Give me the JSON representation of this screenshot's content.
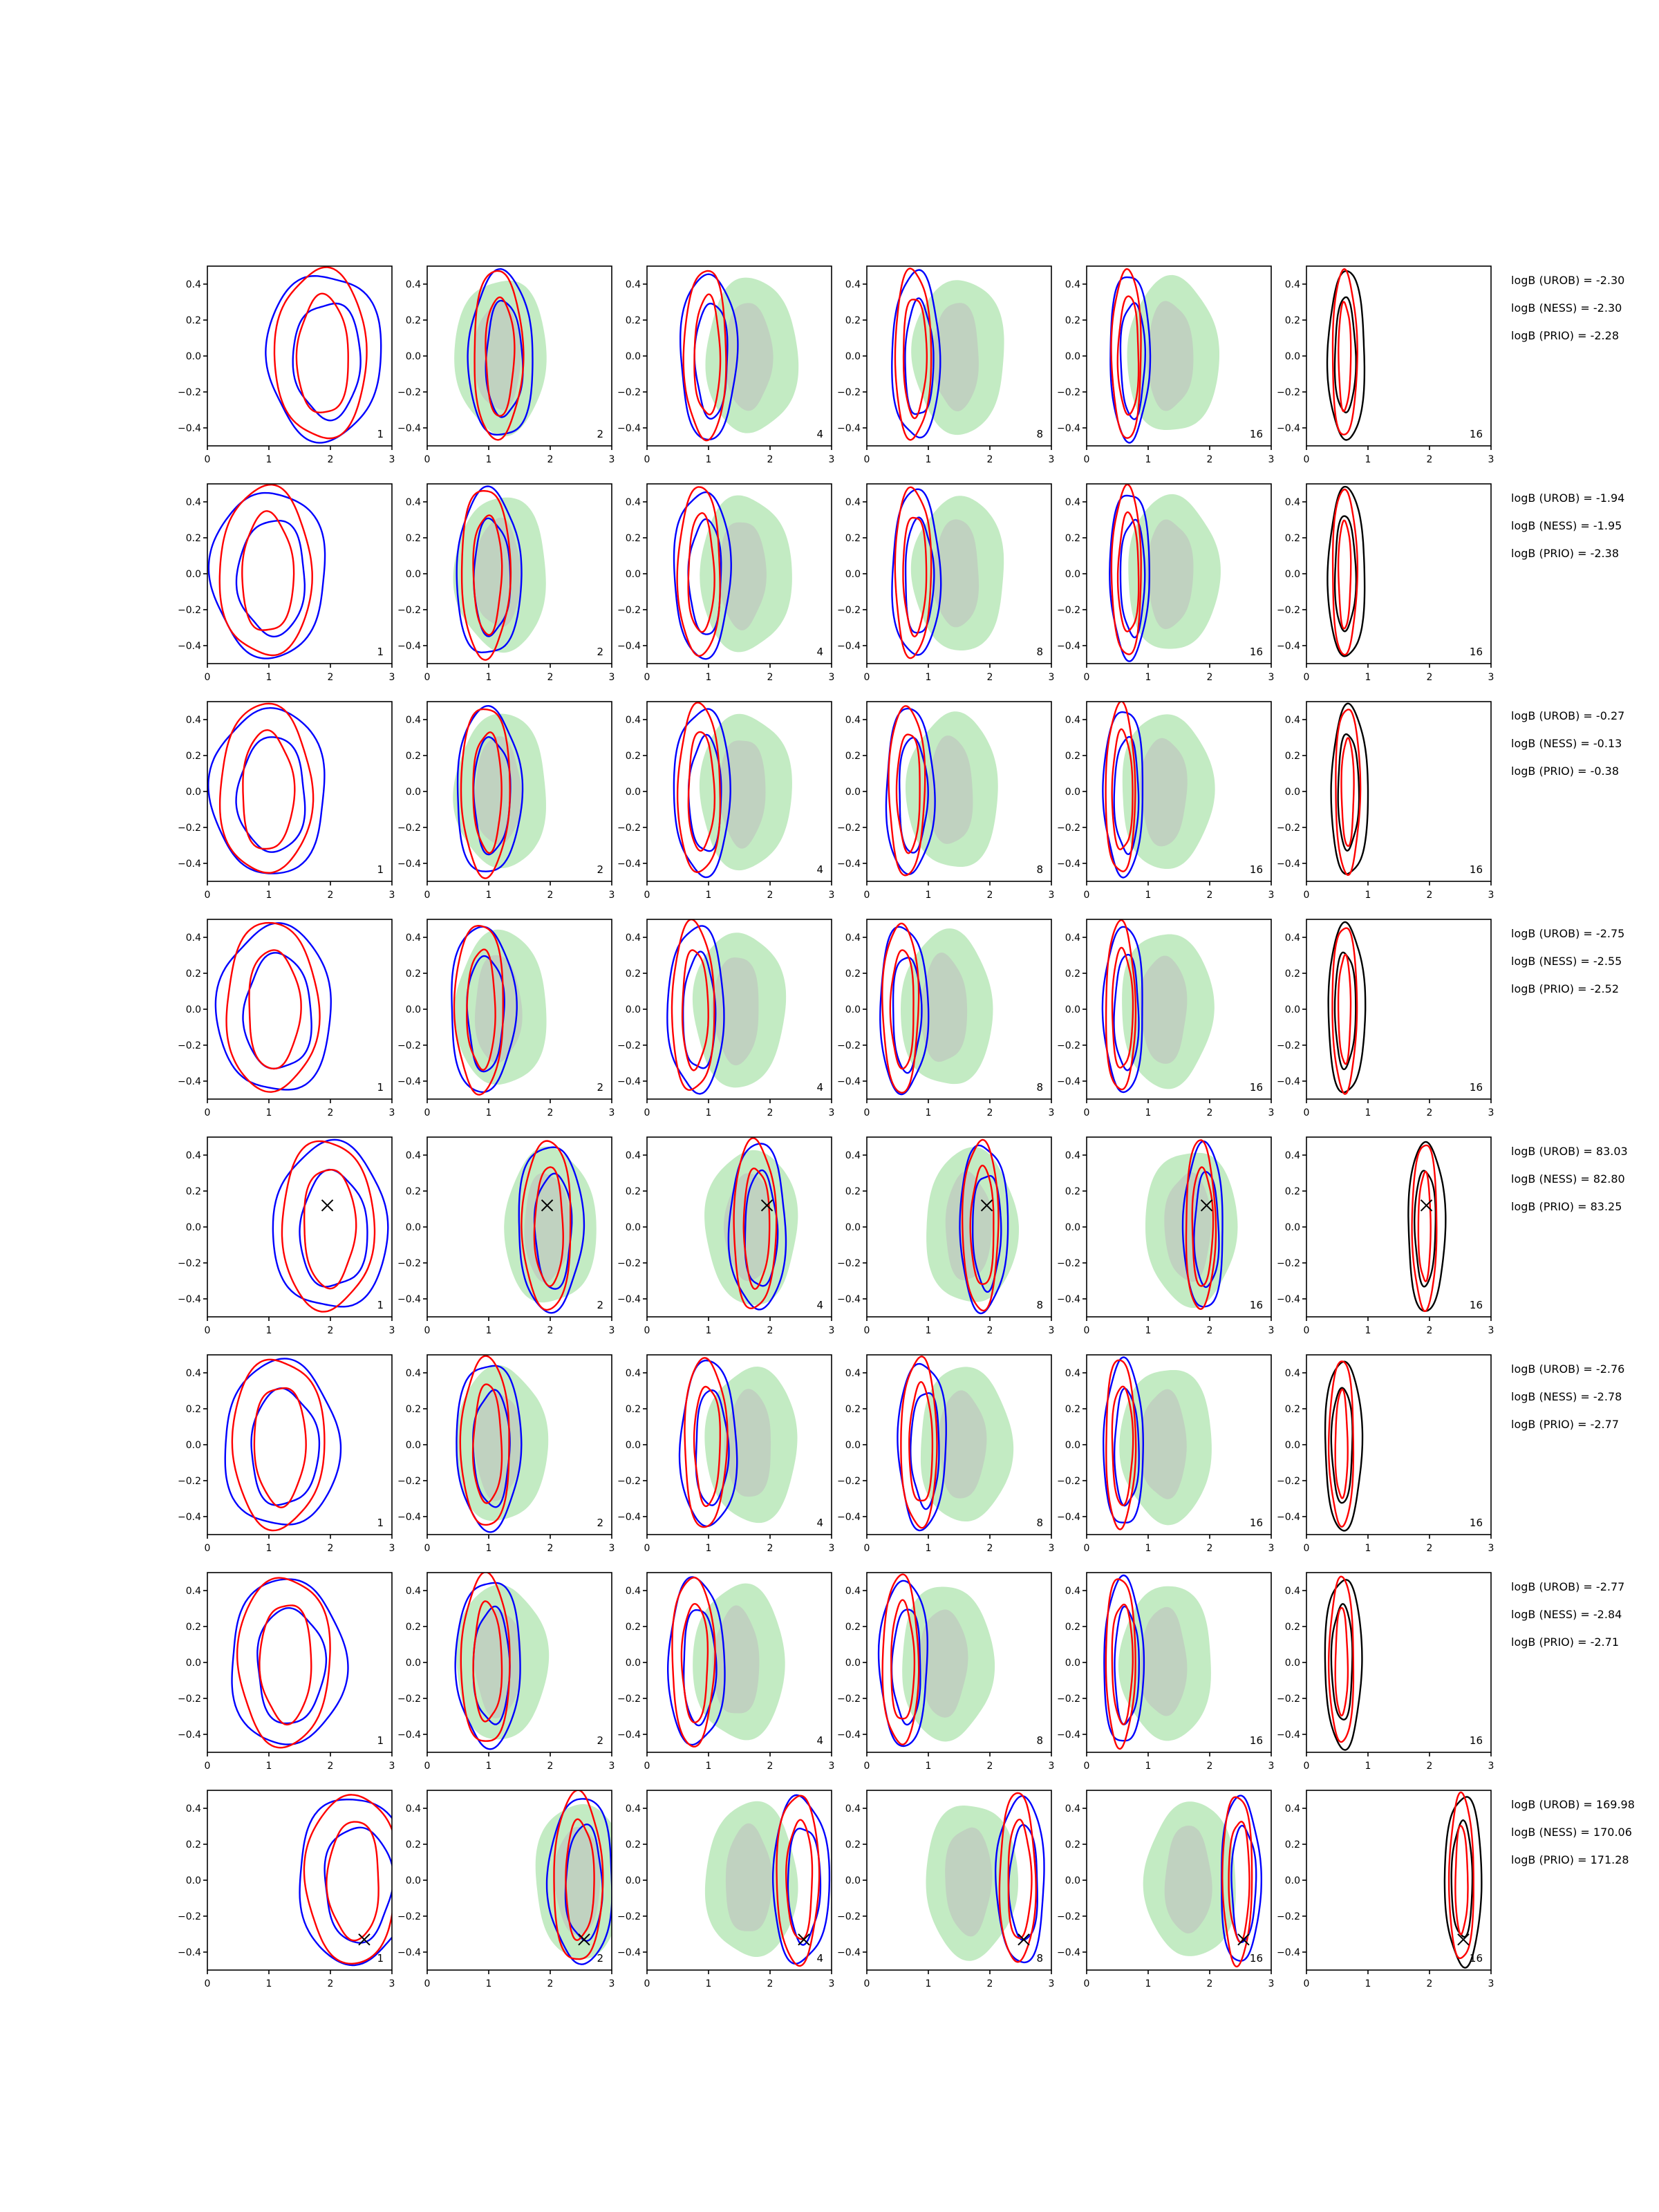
{
  "figure": {
    "col_labels": [
      "1",
      "2",
      "4",
      "8",
      "16",
      "16"
    ],
    "x_ticks": [
      "0",
      "1",
      "2",
      "3"
    ],
    "y_ticks": [
      "0.4",
      "0.2",
      "0.0",
      "−0.2",
      "−0.4"
    ],
    "colors": {
      "blue": "#0000ff",
      "red": "#ff0000",
      "black": "#000000",
      "light_green": "#c3ebc3",
      "grey": "#bdbdbd",
      "axis": "#000000"
    }
  },
  "chart_data": {
    "type": "contour-grid",
    "rows": 8,
    "cols": 6,
    "xlim": [
      0,
      3
    ],
    "ylim": [
      -0.5,
      0.5
    ],
    "panel_numbers": [
      "1",
      "2",
      "4",
      "8",
      "16",
      "16"
    ],
    "rows_data": [
      {
        "cx": [
          1.9,
          1.2,
          1.0,
          0.8,
          0.7,
          0.65
        ],
        "true_point": null,
        "annotations": [
          "logB (UROB) = -2.30",
          "logB (NESS) = -2.30",
          "logB (PRIO) = -2.28"
        ]
      },
      {
        "cx": [
          1.0,
          1.0,
          0.9,
          0.8,
          0.7,
          0.65
        ],
        "true_point": null,
        "annotations": [
          "logB (UROB) = -1.94",
          "logB (NESS) = -1.95",
          "logB (PRIO) = -2.38"
        ]
      },
      {
        "cx": [
          1.0,
          1.0,
          0.9,
          0.7,
          0.6,
          0.7
        ],
        "true_point": null,
        "annotations": [
          "logB (UROB) = -0.27",
          "logB (NESS) = -0.13",
          "logB (PRIO) = -0.38"
        ]
      },
      {
        "cx": [
          1.1,
          0.9,
          0.8,
          0.6,
          0.6,
          0.65
        ],
        "true_point": null,
        "annotations": [
          "logB (UROB) = -2.75",
          "logB (NESS) = -2.55",
          "logB (PRIO) = -2.52"
        ]
      },
      {
        "cx": [
          2.0,
          2.0,
          1.8,
          1.9,
          1.9,
          1.95
        ],
        "true_point": [
          1.95,
          0.12
        ],
        "annotations": [
          "logB (UROB) = 83.03",
          "logB (NESS) = 82.80",
          "logB (PRIO) = 83.25"
        ]
      },
      {
        "cx": [
          1.2,
          1.0,
          1.0,
          0.9,
          0.6,
          0.6
        ],
        "true_point": null,
        "annotations": [
          "logB (UROB) = -2.76",
          "logB (NESS) = -2.78",
          "logB (PRIO) = -2.77"
        ]
      },
      {
        "cx": [
          1.3,
          1.0,
          0.8,
          0.6,
          0.6,
          0.6
        ],
        "true_point": null,
        "annotations": [
          "logB (UROB) = -2.77",
          "logB (NESS) = -2.84",
          "logB (PRIO) = -2.71"
        ]
      },
      {
        "cx": [
          2.4,
          2.5,
          2.5,
          2.5,
          2.5,
          2.55
        ],
        "true_point": [
          2.55,
          -0.33
        ],
        "annotations": [
          "logB (UROB) = 169.98",
          "logB (NESS) = 170.06",
          "logB (PRIO) = 171.28"
        ]
      }
    ]
  }
}
